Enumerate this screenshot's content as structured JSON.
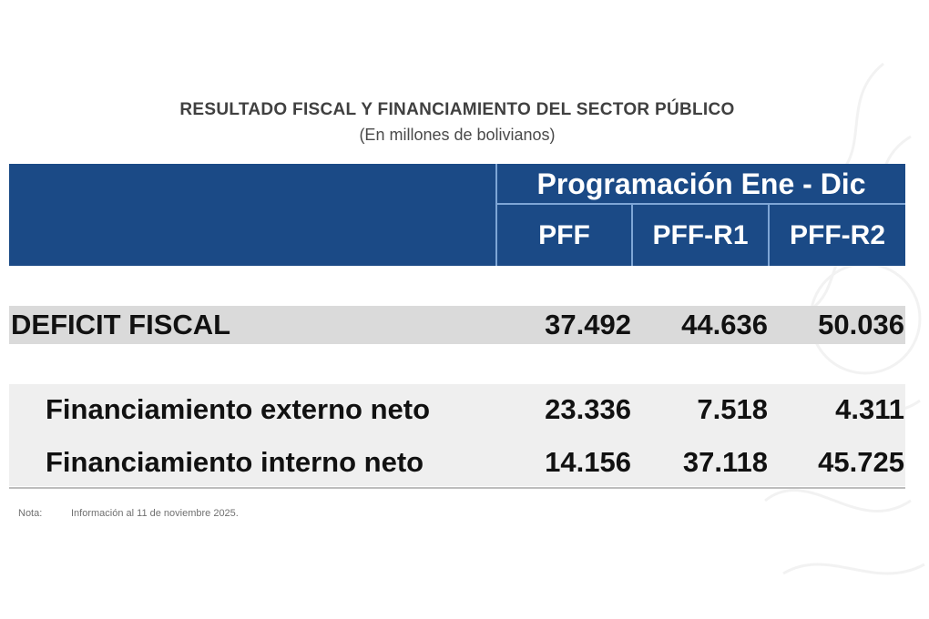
{
  "title": "RESULTADO FISCAL Y FINANCIAMIENTO  DEL SECTOR PÚBLICO",
  "subtitle": "(En millones de bolivianos)",
  "header": {
    "program_label": "Programación Ene - Dic",
    "columns": [
      "PFF",
      "PFF-R1",
      "PFF-R2"
    ]
  },
  "rows": {
    "deficit": {
      "label": "DEFICIT FISCAL",
      "values": [
        "37.492",
        "44.636",
        "50.036"
      ]
    },
    "externo": {
      "label": "Financiamiento externo neto",
      "values": [
        "23.336",
        "7.518",
        "4.311"
      ]
    },
    "interno": {
      "label": "Financiamiento interno neto",
      "values": [
        "14.156",
        "37.118",
        "45.725"
      ]
    }
  },
  "note": {
    "label": "Nota:",
    "text": "Información al 11 de noviembre 2025."
  },
  "colors": {
    "header_bg": "#1b4a86",
    "deficit_band": "#dadada",
    "financing_band": "#efefef"
  }
}
